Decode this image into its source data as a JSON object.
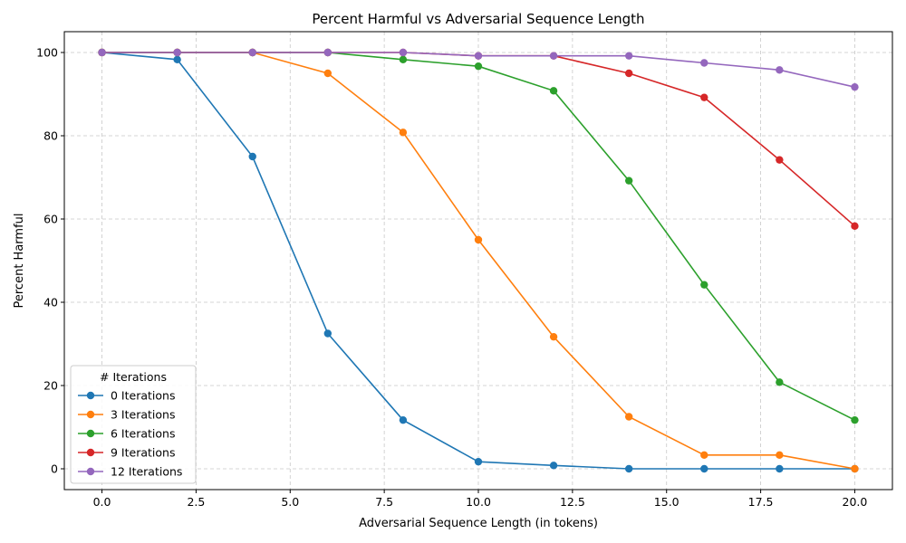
{
  "chart_data": {
    "type": "line",
    "title": "Percent Harmful vs Adversarial Sequence Length",
    "xlabel": "Adversarial Sequence Length (in tokens)",
    "ylabel": "Percent Harmful",
    "xlim": [
      -1,
      21
    ],
    "ylim": [
      -5,
      105
    ],
    "xticks": [
      0.0,
      2.5,
      5.0,
      7.5,
      10.0,
      12.5,
      15.0,
      17.5,
      20.0
    ],
    "xtick_labels": [
      "0.0",
      "2.5",
      "5.0",
      "7.5",
      "10.0",
      "12.5",
      "15.0",
      "17.5",
      "20.0"
    ],
    "yticks": [
      0,
      20,
      40,
      60,
      80,
      100
    ],
    "ytick_labels": [
      "0",
      "20",
      "40",
      "60",
      "80",
      "100"
    ],
    "grid": true,
    "legend_title": "# Iterations",
    "legend_position": "lower-left",
    "x": [
      0,
      2,
      4,
      6,
      8,
      10,
      12,
      14,
      16,
      18,
      20
    ],
    "series": [
      {
        "name": "0 Iterations",
        "color": "#1f77b4",
        "values": [
          100,
          98.3,
          75.0,
          32.5,
          11.7,
          1.7,
          0.8,
          0,
          0,
          0,
          0
        ]
      },
      {
        "name": "3 Iterations",
        "color": "#ff7f0e",
        "values": [
          100,
          100,
          100,
          95.0,
          80.8,
          55.0,
          31.7,
          12.5,
          3.3,
          3.3,
          0
        ]
      },
      {
        "name": "6 Iterations",
        "color": "#2ca02c",
        "values": [
          100,
          100,
          100,
          100,
          98.3,
          96.7,
          90.8,
          69.2,
          44.2,
          20.8,
          11.7
        ]
      },
      {
        "name": "9 Iterations",
        "color": "#d62728",
        "values": [
          100,
          100,
          100,
          100,
          100,
          99.2,
          99.2,
          95.0,
          89.2,
          74.2,
          58.3
        ]
      },
      {
        "name": "12 Iterations",
        "color": "#9467bd",
        "values": [
          100,
          100,
          100,
          100,
          100,
          99.2,
          99.2,
          99.2,
          97.5,
          95.8,
          91.7
        ]
      }
    ]
  }
}
